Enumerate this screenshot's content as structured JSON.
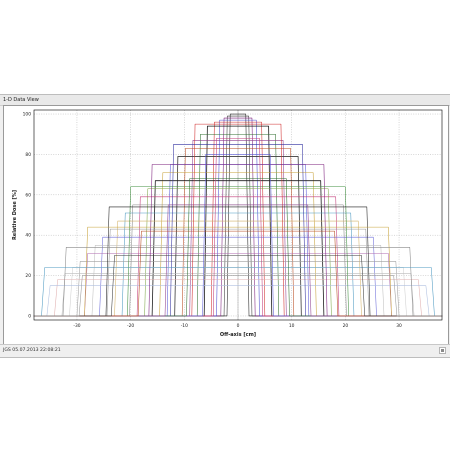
{
  "window": {
    "title": "1-D Data View"
  },
  "status_bar": {
    "text": "JGS  05.07.2013 22:08:21"
  },
  "colors": {
    "background": "#ffffff",
    "window_bg": "#f0f0f0",
    "grid": "#9a9a9a",
    "axis": "#000000"
  },
  "icons": {
    "status_grip": "resize-grip-icon"
  },
  "chart_data": {
    "type": "line",
    "xlabel": "Off-axis [cm]",
    "ylabel": "Relative Dose [%]",
    "xlim": [
      -38,
      38
    ],
    "ylim": [
      -2,
      102
    ],
    "x_ticks": [
      -30,
      -20,
      -10,
      0,
      10,
      20,
      30
    ],
    "y_ticks": [
      0,
      20,
      40,
      60,
      80,
      100
    ],
    "grid": true,
    "legend": "none",
    "series": [
      {
        "color": "#1f1f1f",
        "width": 0.2,
        "values": [
          [
            -38,
            0
          ],
          [
            -2.05,
            0
          ],
          [
            -1.45,
            100
          ],
          [
            1.45,
            100
          ],
          [
            2.05,
            0
          ],
          [
            38,
            0
          ]
        ]
      },
      {
        "color": "#3b3b3b",
        "width": 0.2,
        "values": [
          [
            -38,
            0
          ],
          [
            -2.6,
            0
          ],
          [
            -2.0,
            99
          ],
          [
            2.0,
            99
          ],
          [
            2.6,
            0
          ],
          [
            38,
            0
          ]
        ]
      },
      {
        "color": "#7b1c7b",
        "width": 0.2,
        "values": [
          [
            -38,
            0
          ],
          [
            -3.2,
            0
          ],
          [
            -2.6,
            98
          ],
          [
            2.6,
            98
          ],
          [
            3.2,
            0
          ],
          [
            38,
            0
          ]
        ]
      },
      {
        "color": "#4b4bd0",
        "width": 0.2,
        "values": [
          [
            -38,
            0
          ],
          [
            -4.0,
            0
          ],
          [
            -3.4,
            97
          ],
          [
            3.4,
            97
          ],
          [
            4.0,
            0
          ],
          [
            38,
            0
          ]
        ]
      },
      {
        "color": "#d02a2a",
        "width": 0.2,
        "values": [
          [
            -38,
            0
          ],
          [
            -5.0,
            0
          ],
          [
            -4.4,
            96
          ],
          [
            4.4,
            96
          ],
          [
            5.0,
            0
          ],
          [
            38,
            0
          ]
        ]
      },
      {
        "color": "#1f1f1f",
        "width": 0.45,
        "values": [
          [
            -38,
            0
          ],
          [
            -6.3,
            0
          ],
          [
            -5.7,
            94
          ],
          [
            5.7,
            94
          ],
          [
            6.3,
            0
          ],
          [
            38,
            0
          ]
        ]
      },
      {
        "color": "#2f6f2f",
        "width": 0.2,
        "values": [
          [
            -38,
            0
          ],
          [
            -7.6,
            0
          ],
          [
            -7.0,
            90
          ],
          [
            7.0,
            90
          ],
          [
            7.6,
            0
          ],
          [
            38,
            0
          ]
        ]
      },
      {
        "color": "#8f3f8f",
        "width": 0.2,
        "values": [
          [
            -38,
            0
          ],
          [
            -9.0,
            0
          ],
          [
            -8.4,
            87
          ],
          [
            8.4,
            87
          ],
          [
            9.0,
            0
          ],
          [
            38,
            0
          ]
        ]
      },
      {
        "color": "#b84a1f",
        "width": 0.2,
        "values": [
          [
            -38,
            0
          ],
          [
            -10.4,
            0
          ],
          [
            -9.8,
            83
          ],
          [
            9.8,
            83
          ],
          [
            10.4,
            0
          ],
          [
            38,
            0
          ]
        ]
      },
      {
        "color": "#3b3b3b",
        "width": 0.45,
        "values": [
          [
            -38,
            0
          ],
          [
            -11.8,
            0
          ],
          [
            -11.2,
            79
          ],
          [
            11.2,
            79
          ],
          [
            11.8,
            0
          ],
          [
            38,
            0
          ]
        ]
      },
      {
        "color": "#5a5ad8",
        "width": 0.2,
        "values": [
          [
            -38,
            0
          ],
          [
            -13.2,
            0
          ],
          [
            -12.6,
            75
          ],
          [
            12.6,
            75
          ],
          [
            13.2,
            0
          ],
          [
            38,
            0
          ]
        ]
      },
      {
        "color": "#c8a23a",
        "width": 0.2,
        "values": [
          [
            -38,
            0
          ],
          [
            -14.6,
            0
          ],
          [
            -14.0,
            71
          ],
          [
            14.0,
            71
          ],
          [
            14.6,
            0
          ],
          [
            38,
            0
          ]
        ]
      },
      {
        "color": "#1f1f1f",
        "width": 0.45,
        "values": [
          [
            -38,
            0
          ],
          [
            -16.0,
            0
          ],
          [
            -15.4,
            67
          ],
          [
            15.4,
            67
          ],
          [
            16.0,
            0
          ],
          [
            38,
            0
          ]
        ]
      },
      {
        "color": "#7fa84a",
        "width": 0.2,
        "values": [
          [
            -38,
            0
          ],
          [
            -17.4,
            0
          ],
          [
            -16.8,
            63
          ],
          [
            16.8,
            63
          ],
          [
            17.4,
            0
          ],
          [
            38,
            0
          ]
        ]
      },
      {
        "color": "#c23c7a",
        "width": 0.2,
        "values": [
          [
            -38,
            0
          ],
          [
            -18.8,
            0
          ],
          [
            -18.2,
            59
          ],
          [
            18.2,
            59
          ],
          [
            18.8,
            0
          ],
          [
            38,
            0
          ]
        ]
      },
      {
        "color": "#888888",
        "width": 0.2,
        "values": [
          [
            -38,
            0
          ],
          [
            -20.2,
            0
          ],
          [
            -19.6,
            55
          ],
          [
            19.6,
            55
          ],
          [
            20.2,
            0
          ],
          [
            38,
            0
          ]
        ]
      },
      {
        "color": "#4e9ac2",
        "width": 0.2,
        "values": [
          [
            -38,
            0
          ],
          [
            -21.6,
            0
          ],
          [
            -21.0,
            51
          ],
          [
            21.0,
            51
          ],
          [
            21.6,
            0
          ],
          [
            38,
            0
          ]
        ]
      },
      {
        "color": "#d4b36a",
        "width": 0.2,
        "values": [
          [
            -38,
            0
          ],
          [
            -23.0,
            0
          ],
          [
            -22.4,
            47
          ],
          [
            22.4,
            47
          ],
          [
            23.0,
            0
          ],
          [
            38,
            0
          ]
        ]
      },
      {
        "color": "#9a9a9a",
        "width": 0.2,
        "values": [
          [
            -38,
            0
          ],
          [
            -24.4,
            0
          ],
          [
            -23.8,
            43
          ],
          [
            23.8,
            43
          ],
          [
            24.4,
            0
          ],
          [
            38,
            0
          ]
        ]
      },
      {
        "color": "#6b6bd8",
        "width": 0.2,
        "values": [
          [
            -38,
            0
          ],
          [
            -25.8,
            0
          ],
          [
            -25.2,
            39
          ],
          [
            25.2,
            39
          ],
          [
            25.8,
            0
          ],
          [
            38,
            0
          ]
        ]
      },
      {
        "color": "#c0c0c0",
        "width": 0.2,
        "values": [
          [
            -38,
            0
          ],
          [
            -27.2,
            0
          ],
          [
            -26.6,
            35
          ],
          [
            26.6,
            35
          ],
          [
            27.2,
            0
          ],
          [
            38,
            0
          ]
        ]
      },
      {
        "color": "#b06ab0",
        "width": 0.2,
        "values": [
          [
            -38,
            0
          ],
          [
            -28.6,
            0
          ],
          [
            -28.0,
            31
          ],
          [
            28.0,
            31
          ],
          [
            28.6,
            0
          ],
          [
            38,
            0
          ]
        ]
      },
      {
        "color": "#a0a0a0",
        "width": 0.2,
        "values": [
          [
            -38,
            0
          ],
          [
            -30.0,
            0
          ],
          [
            -29.4,
            27
          ],
          [
            29.4,
            27
          ],
          [
            30.0,
            0
          ],
          [
            38,
            0
          ]
        ]
      },
      {
        "color": "#d0d0d0",
        "width": 0.2,
        "values": [
          [
            -38,
            0
          ],
          [
            -31.4,
            0
          ],
          [
            -30.8,
            24
          ],
          [
            30.8,
            24
          ],
          [
            31.4,
            0
          ],
          [
            38,
            0
          ]
        ]
      },
      {
        "color": "#bcbcbc",
        "width": 0.2,
        "values": [
          [
            -38,
            0
          ],
          [
            -32.8,
            0
          ],
          [
            -32.2,
            21
          ],
          [
            32.2,
            21
          ],
          [
            32.8,
            0
          ],
          [
            38,
            0
          ]
        ]
      },
      {
        "color": "#e0b0b0",
        "width": 0.2,
        "values": [
          [
            -38,
            0
          ],
          [
            -34.2,
            0
          ],
          [
            -33.6,
            18
          ],
          [
            33.6,
            18
          ],
          [
            34.2,
            0
          ],
          [
            38,
            0
          ]
        ]
      },
      {
        "color": "#b0c0e0",
        "width": 0.2,
        "values": [
          [
            -38,
            0
          ],
          [
            -35.6,
            0
          ],
          [
            -35.0,
            15
          ],
          [
            35.0,
            15
          ],
          [
            35.6,
            0
          ],
          [
            38,
            0
          ]
        ]
      },
      {
        "color": "#d02a2a",
        "width": 0.2,
        "values": [
          [
            -38,
            0
          ],
          [
            -8.6,
            0
          ],
          [
            -8.0,
            95
          ],
          [
            8.0,
            95
          ],
          [
            8.6,
            0
          ],
          [
            38,
            0
          ]
        ]
      },
      {
        "color": "#2f2f9f",
        "width": 0.2,
        "values": [
          [
            -38,
            0
          ],
          [
            -12.6,
            0
          ],
          [
            -12.0,
            85
          ],
          [
            12.0,
            85
          ],
          [
            12.6,
            0
          ],
          [
            38,
            0
          ]
        ]
      },
      {
        "color": "#7b1c7b",
        "width": 0.2,
        "values": [
          [
            -38,
            0
          ],
          [
            -16.6,
            0
          ],
          [
            -16.0,
            75
          ],
          [
            16.0,
            75
          ],
          [
            16.6,
            0
          ],
          [
            38,
            0
          ]
        ]
      },
      {
        "color": "#3f8f3f",
        "width": 0.2,
        "values": [
          [
            -38,
            0
          ],
          [
            -20.6,
            0
          ],
          [
            -20.0,
            64
          ],
          [
            20.0,
            64
          ],
          [
            20.6,
            0
          ],
          [
            38,
            0
          ]
        ]
      },
      {
        "color": "#1f1f1f",
        "width": 0.2,
        "values": [
          [
            -38,
            0
          ],
          [
            -24.6,
            0
          ],
          [
            -24.0,
            54
          ],
          [
            24.0,
            54
          ],
          [
            24.6,
            0
          ],
          [
            38,
            0
          ]
        ]
      },
      {
        "color": "#c8a23a",
        "width": 0.2,
        "values": [
          [
            -38,
            0
          ],
          [
            -28.6,
            0
          ],
          [
            -28.0,
            44
          ],
          [
            28.0,
            44
          ],
          [
            28.6,
            0
          ],
          [
            38,
            0
          ]
        ]
      },
      {
        "color": "#888888",
        "width": 0.2,
        "values": [
          [
            -38,
            0
          ],
          [
            -32.6,
            0
          ],
          [
            -32.0,
            34
          ],
          [
            32.0,
            34
          ],
          [
            32.6,
            0
          ],
          [
            38,
            0
          ]
        ]
      },
      {
        "color": "#4e9ac2",
        "width": 0.2,
        "values": [
          [
            -38,
            0
          ],
          [
            -36.6,
            0
          ],
          [
            -36.0,
            24
          ],
          [
            36.0,
            24
          ],
          [
            36.6,
            0
          ],
          [
            38,
            0
          ]
        ]
      },
      {
        "color": "#c23c7a",
        "width": 0.2,
        "values": [
          [
            -38,
            0
          ],
          [
            -4.6,
            0
          ],
          [
            -4.0,
            88
          ],
          [
            4.0,
            88
          ],
          [
            4.6,
            0
          ],
          [
            38,
            0
          ]
        ]
      },
      {
        "color": "#5a5ad8",
        "width": 0.2,
        "values": [
          [
            -38,
            0
          ],
          [
            -6.6,
            0
          ],
          [
            -6.0,
            80
          ],
          [
            6.0,
            80
          ],
          [
            6.6,
            0
          ],
          [
            38,
            0
          ]
        ]
      },
      {
        "color": "#2f6f2f",
        "width": 0.2,
        "values": [
          [
            -38,
            0
          ],
          [
            -9.6,
            0
          ],
          [
            -9.0,
            68
          ],
          [
            9.0,
            68
          ],
          [
            9.6,
            0
          ],
          [
            38,
            0
          ]
        ]
      },
      {
        "color": "#8f3f8f",
        "width": 0.2,
        "values": [
          [
            -38,
            0
          ],
          [
            -13.6,
            0
          ],
          [
            -13.0,
            55
          ],
          [
            13.0,
            55
          ],
          [
            13.6,
            0
          ],
          [
            38,
            0
          ]
        ]
      },
      {
        "color": "#b84a1f",
        "width": 0.2,
        "values": [
          [
            -38,
            0
          ],
          [
            -18.6,
            0
          ],
          [
            -18.0,
            42
          ],
          [
            18.0,
            42
          ],
          [
            18.6,
            0
          ],
          [
            38,
            0
          ]
        ]
      },
      {
        "color": "#3b3b3b",
        "width": 0.2,
        "values": [
          [
            -38,
            0
          ],
          [
            -23.6,
            0
          ],
          [
            -23.0,
            30
          ],
          [
            23.0,
            30
          ],
          [
            23.6,
            0
          ],
          [
            38,
            0
          ]
        ]
      },
      {
        "color": "#9a9a9a",
        "width": 0.2,
        "values": [
          [
            -38,
            0
          ],
          [
            -29.6,
            0
          ],
          [
            -29.0,
            20
          ],
          [
            29.0,
            20
          ],
          [
            29.6,
            0
          ],
          [
            38,
            0
          ]
        ]
      }
    ]
  }
}
